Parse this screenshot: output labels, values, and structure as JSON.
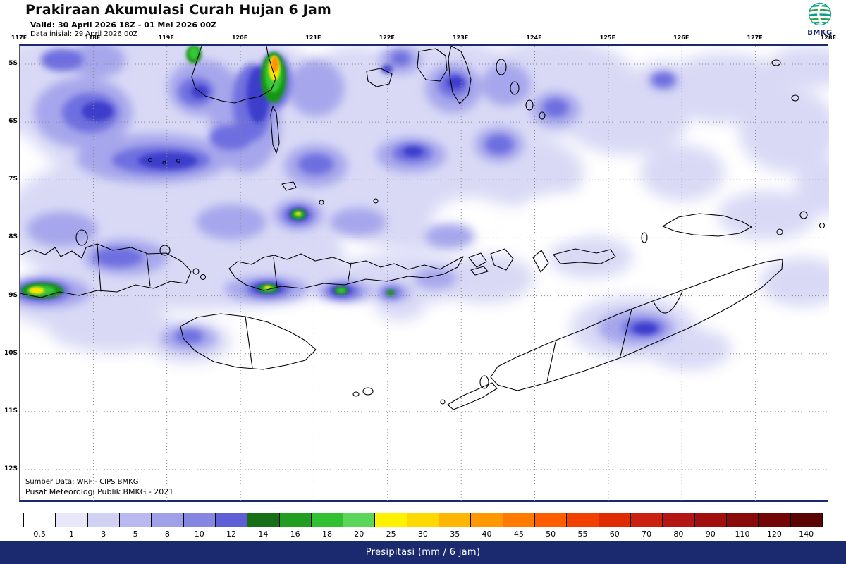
{
  "header": {
    "title": "Prakiraan Akumulasi Curah Hujan 6 Jam",
    "valid": "Valid: 30 April 2026 18Z - 01 Mei 2026 00Z",
    "init": "Data inisial: 29 April 2026 00Z",
    "logo_text": "BMKG"
  },
  "map": {
    "lon_labels": [
      "117E",
      "118E",
      "119E",
      "120E",
      "121E",
      "122E",
      "123E",
      "124E",
      "125E",
      "126E",
      "127E",
      "128E"
    ],
    "lat_labels": [
      "5S",
      "6S",
      "7S",
      "8S",
      "9S",
      "10S",
      "11S",
      "12S"
    ],
    "source_line1": "Sumber Data: WRF - CIPS BMKG",
    "source_line2": "Pusat Meteorologi Publik BMKG - 2021"
  },
  "legend": {
    "label": "Presipitasi (mm / 6 jam)",
    "ticks": [
      "0.5",
      "1",
      "3",
      "5",
      "8",
      "10",
      "12",
      "14",
      "16",
      "18",
      "20",
      "25",
      "30",
      "35",
      "40",
      "45",
      "50",
      "55",
      "60",
      "70",
      "80",
      "90",
      "110",
      "120",
      "140"
    ],
    "colors": [
      "#ffffff",
      "#e7e7f9",
      "#d1d1f4",
      "#b9b9ef",
      "#a0a0e9",
      "#8585e2",
      "#5e5ed6",
      "#166e16",
      "#219d21",
      "#30c030",
      "#5bd65b",
      "#fff200",
      "#ffd800",
      "#ffb600",
      "#ff9800",
      "#ff7a00",
      "#ff5c00",
      "#f24000",
      "#e22a00",
      "#cb1f10",
      "#b51414",
      "#a00e0e",
      "#8a0909",
      "#740505",
      "#5b0202"
    ],
    "bar_background": "#1b2a6e"
  }
}
